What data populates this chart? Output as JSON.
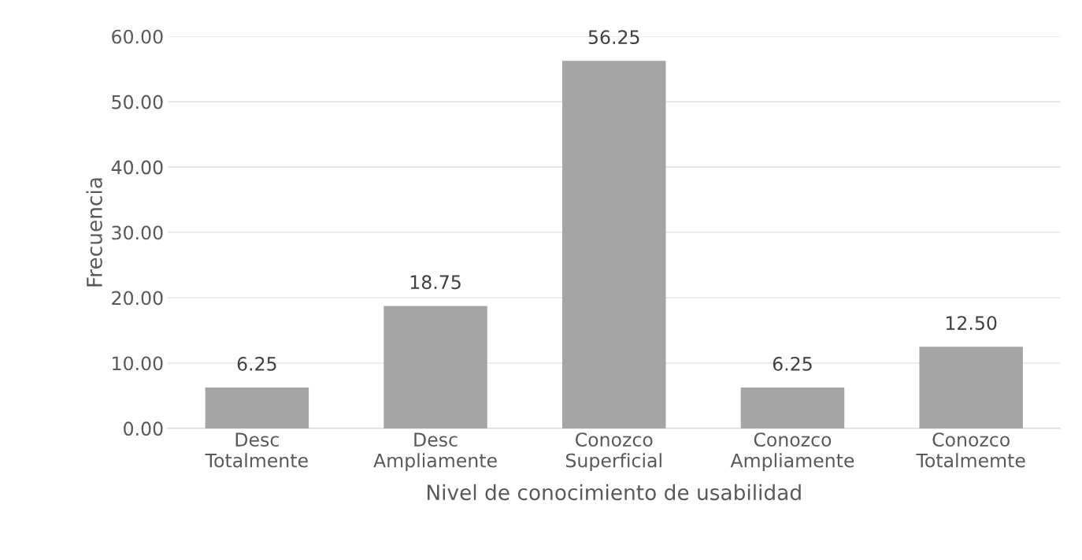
{
  "chart_data": {
    "type": "bar",
    "categories": [
      "Desc\nTotalmente",
      "Desc\nAmpliamente",
      "Conozco\nSuperficial",
      "Conozco\nAmpliamente",
      "Conozco\nTotalmemte"
    ],
    "values": [
      6.25,
      18.75,
      56.25,
      6.25,
      12.5
    ],
    "value_labels": [
      "6.25",
      "18.75",
      "56.25",
      "6.25",
      "12.50"
    ],
    "color": "#a5a5a5",
    "xlabel": "Nivel de conocimiento de usabilidad",
    "ylabel": "Frecuencia",
    "ylim": [
      0,
      60
    ],
    "yticks": [
      {
        "value": 0,
        "label": "0.00"
      },
      {
        "value": 10,
        "label": "10.00"
      },
      {
        "value": 20,
        "label": "20.00"
      },
      {
        "value": 30,
        "label": "30.00"
      },
      {
        "value": 40,
        "label": "40.00"
      },
      {
        "value": 50,
        "label": "50.00"
      },
      {
        "value": 60,
        "label": "60.00"
      }
    ],
    "grid": "y",
    "legend": false
  }
}
